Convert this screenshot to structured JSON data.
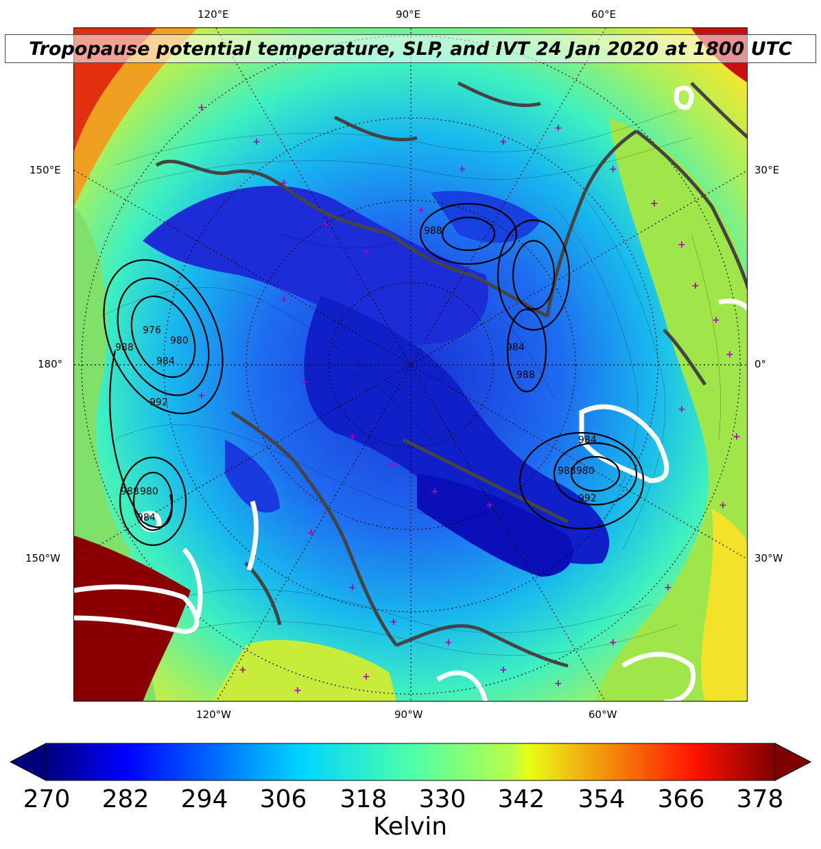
{
  "title": "Tropopause potential temperature, SLP, and IVT 24 Jan 2020 at 1800 UTC",
  "lon_labels": {
    "top": [
      "120°E",
      "90°E",
      "60°E"
    ],
    "bottom": [
      "120°W",
      "90°W",
      "60°W"
    ],
    "left": [
      "150°E",
      "180°",
      "150°W"
    ],
    "right": [
      "30°E",
      "0°",
      "30°W"
    ]
  },
  "colorbar": {
    "label": "Kelvin",
    "ticks": [
      "270",
      "282",
      "294",
      "306",
      "318",
      "330",
      "342",
      "354",
      "366",
      "378"
    ],
    "colormap": "jet",
    "extend": "both"
  },
  "slp_contour_labels": [
    "988",
    "976",
    "980",
    "984",
    "992",
    "988",
    "980",
    "984",
    "988",
    "984",
    "980",
    "992",
    "988",
    "984",
    "988"
  ],
  "colors": {
    "coastline": "#444444",
    "station_marker": "#b000b0",
    "ivt_contour": "#ffffff",
    "slp_contour": "#000000"
  }
}
